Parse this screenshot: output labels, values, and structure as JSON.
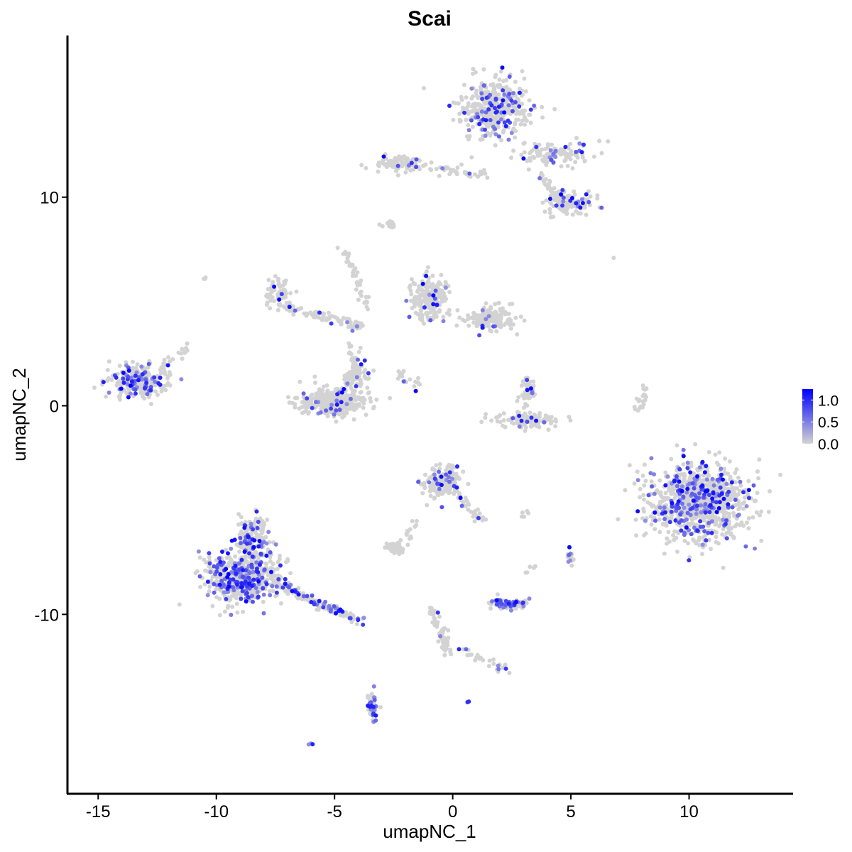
{
  "chart_data": {
    "type": "scatter",
    "title": "Scai",
    "xlabel": "umapNC_1",
    "ylabel": "umapNC_2",
    "xlim": [
      -16.3,
      14.4
    ],
    "ylim": [
      -18.6,
      17.75
    ],
    "xticks": [
      -15,
      -10,
      -5,
      0,
      5,
      10
    ],
    "yticks": [
      -10,
      0,
      10
    ],
    "xtick_labels": [
      "-15",
      "-10",
      "-5",
      "0",
      "5",
      "10"
    ],
    "ytick_labels": [
      "-10",
      "0",
      "10"
    ],
    "grid": false,
    "point_color_low": "#D3D3D3",
    "point_color_high": "#0000FF",
    "legend": {
      "placement": "right",
      "type": "colorbar",
      "range": [
        0,
        1.25
      ],
      "ticks": [
        0.0,
        0.5,
        1.0
      ],
      "tick_labels": [
        "0.0",
        "0.5",
        "1.0"
      ]
    },
    "clusters": [
      {
        "center": [
          1.8,
          14.3
        ],
        "spread": [
          1.2,
          1.1
        ],
        "n": 420,
        "expressing_fraction": 0.15
      },
      {
        "center": [
          4.4,
          12.1
        ],
        "spread": [
          1.2,
          0.5
        ],
        "n": 120,
        "expressing_fraction": 0.12
      },
      {
        "center": [
          5.0,
          9.7
        ],
        "spread": [
          0.9,
          0.5
        ],
        "n": 120,
        "expressing_fraction": 0.12
      },
      {
        "center": [
          -2.2,
          11.6
        ],
        "spread": [
          1.0,
          0.35
        ],
        "n": 110,
        "expressing_fraction": 0.06
      },
      {
        "from": [
          -0.8,
          11.3
        ],
        "to": [
          1.5,
          11.1
        ],
        "n": 40,
        "expressing_fraction": 0.05
      },
      {
        "from": [
          3.8,
          11.0
        ],
        "to": [
          4.5,
          10.0
        ],
        "n": 30,
        "expressing_fraction": 0.05
      },
      {
        "center": [
          -2.7,
          8.7
        ],
        "spread": [
          0.25,
          0.15
        ],
        "n": 15,
        "expressing_fraction": 0
      },
      {
        "center": [
          -1.0,
          5.2
        ],
        "spread": [
          0.6,
          0.9
        ],
        "n": 220,
        "expressing_fraction": 0.08
      },
      {
        "center": [
          1.6,
          4.2
        ],
        "spread": [
          0.9,
          0.45
        ],
        "n": 160,
        "expressing_fraction": 0.08
      },
      {
        "center": [
          -7.4,
          5.4
        ],
        "spread": [
          0.35,
          0.55
        ],
        "n": 70,
        "expressing_fraction": 0.1
      },
      {
        "from": [
          -7.2,
          4.8
        ],
        "to": [
          -3.8,
          3.8
        ],
        "n": 90,
        "expressing_fraction": 0.06
      },
      {
        "from": [
          -4.6,
          7.6
        ],
        "to": [
          -3.6,
          4.6
        ],
        "n": 40,
        "expressing_fraction": 0
      },
      {
        "center": [
          -5.0,
          0.2
        ],
        "spread": [
          1.2,
          0.55
        ],
        "n": 350,
        "expressing_fraction": 0.06
      },
      {
        "center": [
          -4.1,
          1.5
        ],
        "spread": [
          0.45,
          0.6
        ],
        "n": 80,
        "expressing_fraction": 0.06
      },
      {
        "from": [
          -4.3,
          3.0
        ],
        "to": [
          -4.2,
          2.0
        ],
        "n": 15,
        "expressing_fraction": 0
      },
      {
        "from": [
          -2.4,
          1.6
        ],
        "to": [
          -1.2,
          0.7
        ],
        "n": 20,
        "expressing_fraction": 0.1
      },
      {
        "center": [
          -13.3,
          1.2
        ],
        "spread": [
          1.0,
          0.65
        ],
        "n": 260,
        "expressing_fraction": 0.25
      },
      {
        "from": [
          -12.3,
          1.8
        ],
        "to": [
          -11.2,
          2.8
        ],
        "n": 20,
        "expressing_fraction": 0
      },
      {
        "center": [
          -10.5,
          6.1
        ],
        "spread": [
          0.05,
          0.05
        ],
        "n": 3,
        "expressing_fraction": 0
      },
      {
        "center": [
          3.2,
          -0.7
        ],
        "spread": [
          1.0,
          0.3
        ],
        "n": 110,
        "expressing_fraction": 0.1
      },
      {
        "center": [
          3.2,
          0.7
        ],
        "spread": [
          0.3,
          0.5
        ],
        "n": 45,
        "expressing_fraction": 0.1
      },
      {
        "from": [
          7.9,
          -0.3
        ],
        "to": [
          8.2,
          0.9
        ],
        "n": 20,
        "expressing_fraction": 0
      },
      {
        "center": [
          10.4,
          -4.6
        ],
        "spread": [
          1.7,
          1.5
        ],
        "n": 950,
        "expressing_fraction": 0.2
      },
      {
        "center": [
          -0.4,
          -3.7
        ],
        "spread": [
          0.65,
          0.6
        ],
        "n": 200,
        "expressing_fraction": 0.08
      },
      {
        "from": [
          0.2,
          -4.3
        ],
        "to": [
          1.2,
          -5.5
        ],
        "n": 30,
        "expressing_fraction": 0.1
      },
      {
        "center": [
          -8.8,
          -8.2
        ],
        "spread": [
          1.3,
          1.0
        ],
        "n": 600,
        "expressing_fraction": 0.3
      },
      {
        "center": [
          -8.5,
          -6.3
        ],
        "spread": [
          0.5,
          0.8
        ],
        "n": 160,
        "expressing_fraction": 0.2
      },
      {
        "from": [
          -7.3,
          -8.6
        ],
        "to": [
          -4.0,
          -10.3
        ],
        "n": 140,
        "expressing_fraction": 0.3
      },
      {
        "center": [
          -2.4,
          -6.8
        ],
        "spread": [
          0.35,
          0.25
        ],
        "n": 60,
        "expressing_fraction": 0
      },
      {
        "from": [
          -1.9,
          -6.4
        ],
        "to": [
          -1.5,
          -5.5
        ],
        "n": 12,
        "expressing_fraction": 0
      },
      {
        "center": [
          2.4,
          -9.5
        ],
        "spread": [
          0.6,
          0.2
        ],
        "n": 90,
        "expressing_fraction": 0.4
      },
      {
        "from": [
          -0.9,
          -9.7
        ],
        "to": [
          -0.2,
          -11.8
        ],
        "n": 60,
        "expressing_fraction": 0.1
      },
      {
        "from": [
          0.5,
          -11.8
        ],
        "to": [
          2.3,
          -12.6
        ],
        "n": 30,
        "expressing_fraction": 0.2
      },
      {
        "center": [
          -3.4,
          -14.4
        ],
        "spread": [
          0.18,
          0.6
        ],
        "n": 60,
        "expressing_fraction": 0.5
      },
      {
        "center": [
          5.0,
          -7.3
        ],
        "spread": [
          0.12,
          0.3
        ],
        "n": 15,
        "expressing_fraction": 0.3
      },
      {
        "from": [
          3.1,
          -5.2
        ],
        "to": [
          2.8,
          -5.4
        ],
        "n": 5,
        "expressing_fraction": 0
      },
      {
        "from": [
          3.6,
          -7.6
        ],
        "to": [
          3.0,
          -8.1
        ],
        "n": 5,
        "expressing_fraction": 0
      },
      {
        "center": [
          0.6,
          -14.2
        ],
        "spread": [
          0.08,
          0.05
        ],
        "n": 4,
        "expressing_fraction": 0.5
      },
      {
        "center": [
          -6.0,
          -16.2
        ],
        "spread": [
          0.08,
          0.05
        ],
        "n": 3,
        "expressing_fraction": 1
      },
      {
        "center": [
          6.8,
          7.1
        ],
        "spread": [
          0.03,
          0.03
        ],
        "n": 1,
        "expressing_fraction": 0
      }
    ]
  }
}
